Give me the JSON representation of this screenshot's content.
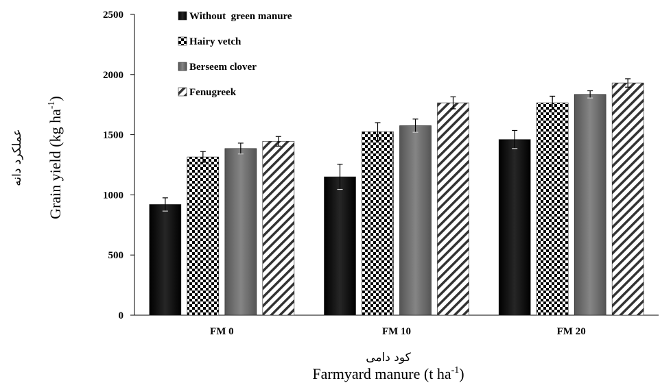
{
  "chart_data": {
    "type": "bar",
    "categories": [
      "FM 0",
      "FM 10",
      "FM 20"
    ],
    "series": [
      {
        "name": "Without  green manure",
        "values": [
          920,
          1150,
          1460
        ],
        "errors": [
          55,
          105,
          75
        ],
        "pattern": "solid-black"
      },
      {
        "name": "Hairy vetch",
        "values": [
          1315,
          1525,
          1765
        ],
        "errors": [
          45,
          75,
          55
        ],
        "pattern": "checker"
      },
      {
        "name": "Berseem clover",
        "values": [
          1385,
          1575,
          1835
        ],
        "errors": [
          45,
          55,
          30
        ],
        "pattern": "solid-gray"
      },
      {
        "name": "Fenugreek",
        "values": [
          1445,
          1765,
          1930
        ],
        "errors": [
          40,
          50,
          35
        ],
        "pattern": "diagonal"
      }
    ],
    "ylim": [
      0,
      2500
    ],
    "yticks": [
      0,
      500,
      1000,
      1500,
      2000,
      2500
    ],
    "ylabel": {
      "main": "Grain yield (kg ha",
      "sup": "-1",
      "close": ")",
      "fa": "عملکرد دانه"
    },
    "xlabel": {
      "main": "Farmyard manure (t ha",
      "sup": "-1",
      "close": ")",
      "fa": "کود دامی"
    },
    "grid": false,
    "legend_position": "top-left",
    "colors": {
      "solid_black": "#111111",
      "solid_gray": "#6b6b6b",
      "checker": "#000000",
      "diagonal": "#333333"
    }
  }
}
